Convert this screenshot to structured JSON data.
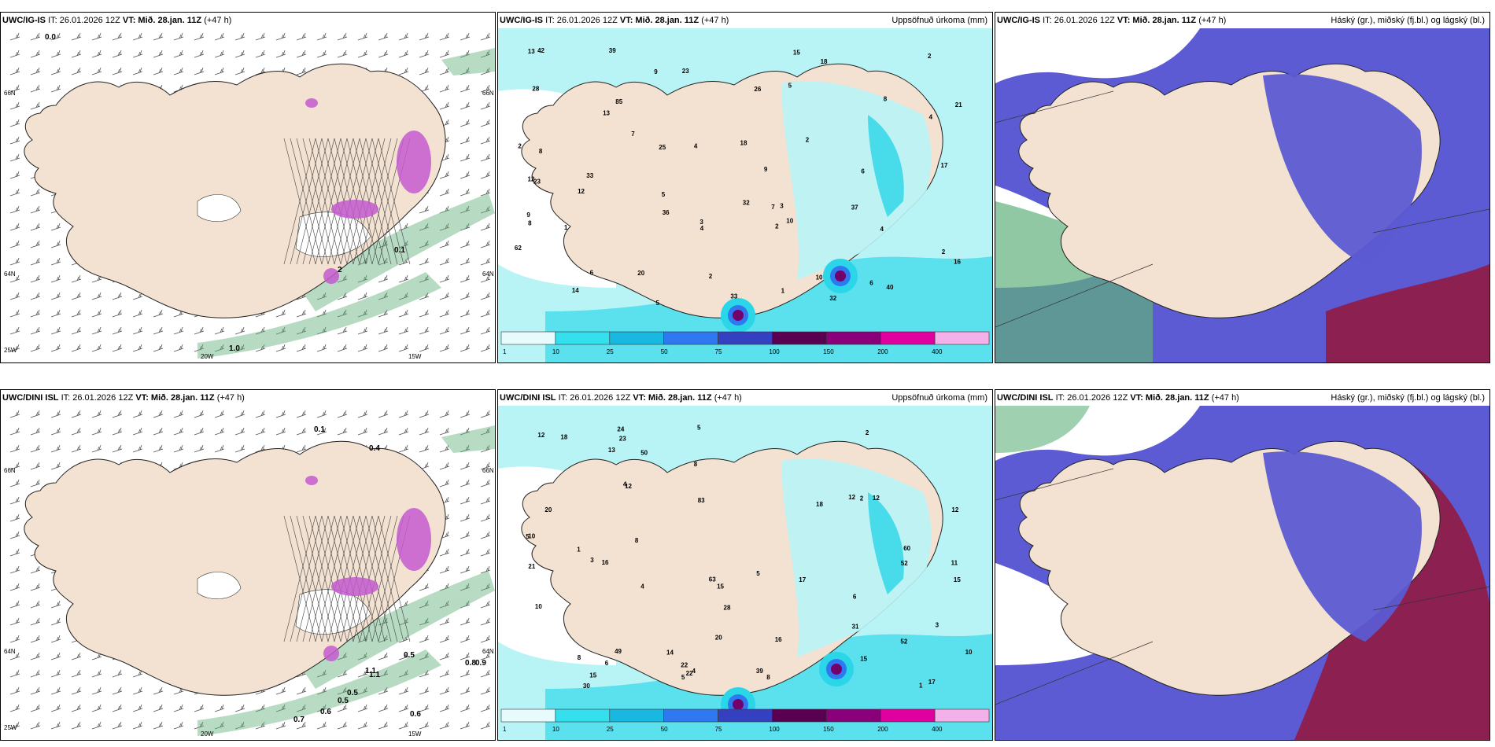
{
  "colors": {
    "land": "#f3e2d2",
    "sea_precip_light": "#b8f4f6",
    "precip_cyan": "#2ad6e8",
    "precip_blue": "#2f78f0",
    "precip_purple": "#74006a",
    "green_cloud": "#5fb07a",
    "cloud_high": "#5c5bd3",
    "cloud_low": "#8c2050",
    "ice_magenta": "#c45ad0"
  },
  "panels": [
    {
      "model": "UWC/IG-IS",
      "it_text": "IT: 26.01.2026 12Z",
      "vt_label": "VT: Mið. 28.jan. 11Z",
      "lead": "(+47 h)",
      "right_title": "",
      "kind": "wind",
      "icon": "wind-map-icon",
      "labels": [
        "66N",
        "64N",
        "25W",
        "20W",
        "15W",
        "66N",
        "64N",
        "1.0",
        "0.0",
        "2",
        "0.1"
      ]
    },
    {
      "model": "UWC/IG-IS",
      "it_text": "IT: 26.01.2026 12Z",
      "vt_label": "VT: Mið. 28.jan. 11Z",
      "lead": "(+47 h)",
      "right_title": "Uppsöfnuð úrkoma (mm)",
      "kind": "precip",
      "icon": "precip-map-icon",
      "numbers": [
        "10",
        "8",
        "2",
        "2",
        "5",
        "4",
        "6",
        "3",
        "25",
        "18",
        "6",
        "2",
        "1",
        "3",
        "4",
        "2",
        "2",
        "8",
        "5",
        "13",
        "9",
        "7",
        "4",
        "14",
        "13",
        "15",
        "10",
        "23",
        "12",
        "16",
        "17",
        "36",
        "23",
        "28",
        "32",
        "39",
        "32",
        "62",
        "40",
        "85",
        "33",
        "26",
        "21",
        "9",
        "18",
        "7",
        "6",
        "1",
        "2",
        "4",
        "5",
        "8",
        "12",
        "42",
        "37",
        "33",
        "20",
        "9"
      ],
      "legend_ticks": [
        "1",
        "10",
        "25",
        "50",
        "75",
        "100",
        "150",
        "200",
        "400"
      ]
    },
    {
      "model": "UWC/IG-IS",
      "it_text": "IT: 26.01.2026 12Z",
      "vt_label": "VT: Mið. 28.jan. 11Z",
      "lead": "(+47 h)",
      "right_title": "Háský (gr.), miðský (fj.bl.) og lágský (bl.)",
      "kind": "cloud",
      "icon": "cloud-map-icon"
    },
    {
      "model": "UWC/DINI ISL",
      "it_text": "IT: 26.01.2026 12Z",
      "vt_label": "VT: Mið. 28.jan. 11Z",
      "lead": "(+47 h)",
      "right_title": "",
      "kind": "wind",
      "icon": "wind-map-icon",
      "labels": [
        "66N",
        "64N",
        "25W",
        "20W",
        "15W",
        "66N",
        "64N",
        "0.7",
        "0.6",
        "0.5",
        "0.5",
        "0.6",
        "0.8",
        "0.9",
        "1.1",
        "0.5",
        "1.1",
        "0.1",
        "0.4"
      ]
    },
    {
      "model": "UWC/DINI ISL",
      "it_text": "IT: 26.01.2026 12Z",
      "vt_label": "VT: Mið. 28.jan. 11Z",
      "lead": "(+47 h)",
      "right_title": "Uppsöfnuð úrkoma (mm)",
      "kind": "precip",
      "icon": "precip-map-icon",
      "numbers": [
        "6",
        "8",
        "8",
        "5",
        "20",
        "49",
        "6",
        "4",
        "4",
        "3",
        "5",
        "2",
        "1",
        "1",
        "10",
        "10",
        "21",
        "8",
        "12",
        "15",
        "16",
        "18",
        "17",
        "15",
        "30",
        "31",
        "63",
        "60",
        "52",
        "39",
        "18",
        "50",
        "83",
        "23",
        "22",
        "22",
        "16",
        "15",
        "12",
        "28",
        "52",
        "15",
        "24",
        "17",
        "12",
        "13",
        "12",
        "11",
        "12",
        "14",
        "20",
        "8",
        "5",
        "5",
        "2",
        "4",
        "10",
        "3"
      ],
      "legend_ticks": [
        "1",
        "10",
        "25",
        "50",
        "75",
        "100",
        "150",
        "200",
        "400"
      ]
    },
    {
      "model": "UWC/DINI ISL",
      "it_text": "IT: 26.01.2026 12Z",
      "vt_label": "VT: Mið. 28.jan. 11Z",
      "lead": "(+47 h)",
      "right_title": "Háský (gr.), miðský (fj.bl.) og lágský (bl.)",
      "kind": "cloud",
      "icon": "cloud-map-icon"
    }
  ]
}
